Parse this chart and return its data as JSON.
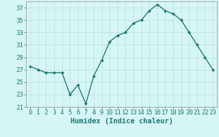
{
  "x": [
    0,
    1,
    2,
    3,
    4,
    5,
    6,
    7,
    8,
    9,
    10,
    11,
    12,
    13,
    14,
    15,
    16,
    17,
    18,
    19,
    20,
    21,
    22,
    23
  ],
  "y": [
    27.5,
    27.0,
    26.5,
    26.5,
    26.5,
    23.0,
    24.5,
    21.5,
    26.0,
    28.5,
    31.5,
    32.5,
    33.0,
    34.5,
    35.0,
    36.5,
    37.5,
    36.5,
    36.0,
    35.0,
    33.0,
    31.0,
    29.0,
    27.0
  ],
  "line_color": "#1a7a6e",
  "marker": "D",
  "marker_size": 2.0,
  "bg_color": "#d6f5f5",
  "grid_color": "#c0dede",
  "xlabel": "Humidex (Indice chaleur)",
  "ylim": [
    21,
    38
  ],
  "yticks": [
    21,
    23,
    25,
    27,
    29,
    31,
    33,
    35,
    37
  ],
  "xticks": [
    0,
    1,
    2,
    3,
    4,
    5,
    6,
    7,
    8,
    9,
    10,
    11,
    12,
    13,
    14,
    15,
    16,
    17,
    18,
    19,
    20,
    21,
    22,
    23
  ],
  "xlabel_fontsize": 7.5,
  "tick_fontsize": 6.5,
  "label_color": "#1a7a6e",
  "tick_color": "#1a7a6e",
  "spine_color": "#888888",
  "linewidth": 1.0
}
